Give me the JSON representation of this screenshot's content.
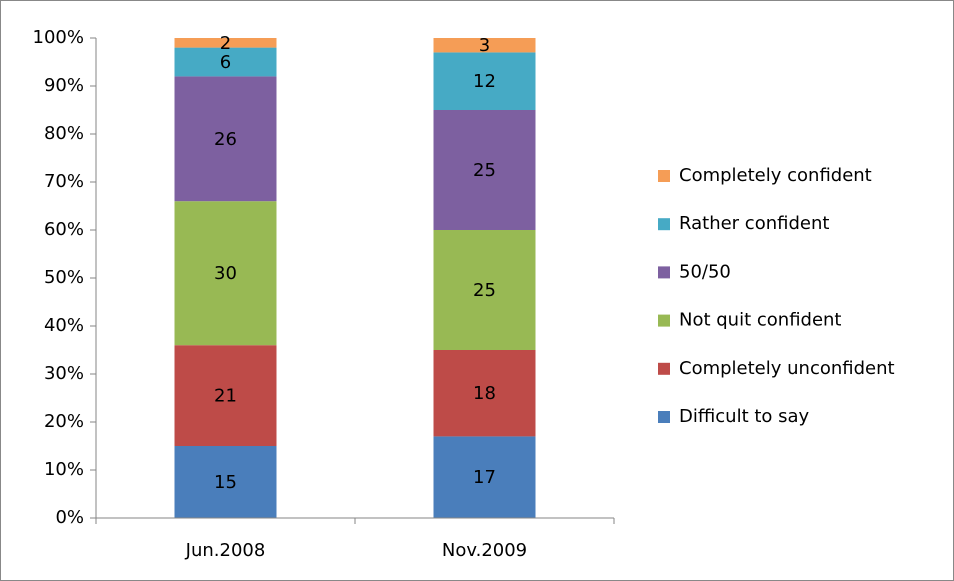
{
  "chart_data": {
    "type": "stacked_bar",
    "categories": [
      "Jun.2008",
      "Nov.2009"
    ],
    "series": [
      {
        "name": "Difficult to say",
        "color": "#4a7ebb",
        "values": [
          15,
          17
        ]
      },
      {
        "name": "Completely unconfident",
        "color": "#be4b48",
        "values": [
          21,
          18
        ]
      },
      {
        "name": "Not quit confident",
        "color": "#98b954",
        "values": [
          30,
          25
        ]
      },
      {
        "name": "50/50",
        "color": "#7d60a0",
        "values": [
          26,
          25
        ]
      },
      {
        "name": "Rather confident",
        "color": "#46aac5",
        "values": [
          6,
          12
        ]
      },
      {
        "name": "Completely confident",
        "color": "#f59d56",
        "values": [
          2,
          3
        ]
      }
    ],
    "ylim": [
      0,
      100
    ],
    "yticks": [
      {
        "value": 0,
        "label": "0%"
      },
      {
        "value": 10,
        "label": "10%"
      },
      {
        "value": 20,
        "label": "20%"
      },
      {
        "value": 30,
        "label": "30%"
      },
      {
        "value": 40,
        "label": "40%"
      },
      {
        "value": 50,
        "label": "50%"
      },
      {
        "value": 60,
        "label": "60%"
      },
      {
        "value": 70,
        "label": "70%"
      },
      {
        "value": 80,
        "label": "80%"
      },
      {
        "value": 90,
        "label": "90%"
      },
      {
        "value": 100,
        "label": "100%"
      }
    ],
    "legend": "right"
  }
}
